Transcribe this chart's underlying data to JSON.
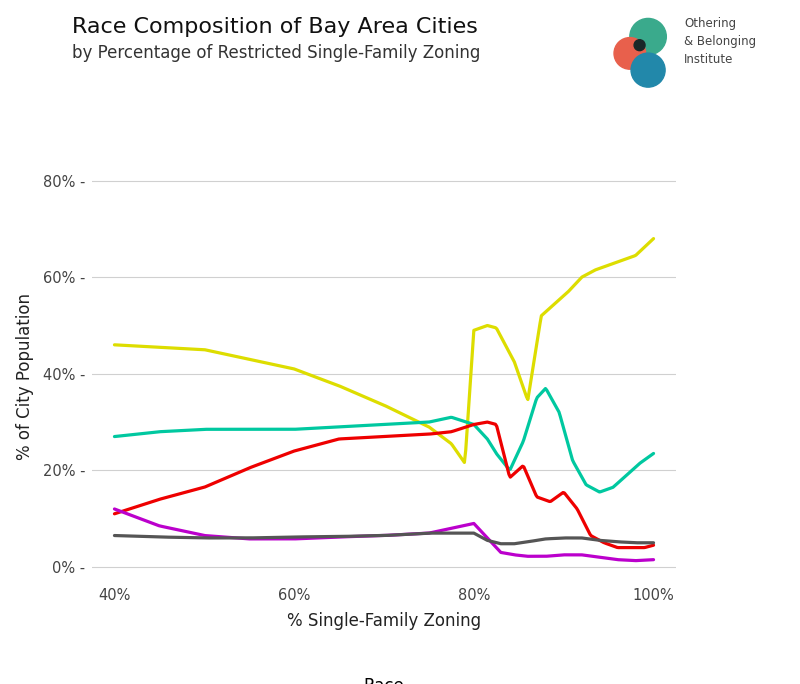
{
  "title": "Race Composition of Bay Area Cities",
  "subtitle": "by Percentage of Restricted Single-Family Zoning",
  "xlabel": "% Single-Family Zoning",
  "ylabel": "% of City Population",
  "xlim": [
    0.375,
    1.025
  ],
  "ylim": [
    -0.03,
    0.82
  ],
  "xticks": [
    0.4,
    0.6,
    0.8,
    1.0
  ],
  "yticks": [
    0.0,
    0.2,
    0.4,
    0.6,
    0.8
  ],
  "xtick_labels": [
    "40%",
    "60%",
    "80%",
    "100%"
  ],
  "ytick_labels": [
    "0%",
    "20%",
    "40%",
    "60%",
    "80%"
  ],
  "background_color": "#ffffff",
  "grid_color": "#d0d0d0",
  "colors": {
    "Asian": "#00c8a0",
    "Black": "#bb00cc",
    "Hispanic": "#ee0000",
    "Other": "#555555",
    "White": "#dddd00"
  },
  "x_asian": [
    0.4,
    0.45,
    0.5,
    0.55,
    0.6,
    0.65,
    0.7,
    0.75,
    0.775,
    0.8,
    0.815,
    0.825,
    0.84,
    0.855,
    0.87,
    0.88,
    0.895,
    0.91,
    0.925,
    0.94,
    0.955,
    0.97,
    0.985,
    1.0
  ],
  "y_asian": [
    0.27,
    0.28,
    0.285,
    0.285,
    0.285,
    0.29,
    0.295,
    0.3,
    0.31,
    0.295,
    0.265,
    0.235,
    0.2,
    0.26,
    0.35,
    0.37,
    0.32,
    0.22,
    0.17,
    0.155,
    0.165,
    0.19,
    0.215,
    0.235
  ],
  "x_black": [
    0.4,
    0.45,
    0.5,
    0.55,
    0.6,
    0.65,
    0.7,
    0.75,
    0.8,
    0.815,
    0.83,
    0.845,
    0.86,
    0.88,
    0.9,
    0.92,
    0.94,
    0.96,
    0.98,
    1.0
  ],
  "y_black": [
    0.12,
    0.085,
    0.065,
    0.058,
    0.058,
    0.062,
    0.065,
    0.07,
    0.09,
    0.06,
    0.03,
    0.025,
    0.022,
    0.022,
    0.025,
    0.025,
    0.02,
    0.015,
    0.013,
    0.015
  ],
  "x_hispanic": [
    0.4,
    0.45,
    0.5,
    0.55,
    0.6,
    0.65,
    0.7,
    0.75,
    0.775,
    0.8,
    0.815,
    0.825,
    0.84,
    0.855,
    0.87,
    0.885,
    0.9,
    0.915,
    0.93,
    0.945,
    0.96,
    0.975,
    0.99,
    1.0
  ],
  "y_hispanic": [
    0.11,
    0.14,
    0.165,
    0.205,
    0.24,
    0.265,
    0.27,
    0.275,
    0.28,
    0.295,
    0.3,
    0.295,
    0.185,
    0.21,
    0.145,
    0.135,
    0.155,
    0.12,
    0.065,
    0.05,
    0.04,
    0.04,
    0.04,
    0.045
  ],
  "x_other": [
    0.4,
    0.45,
    0.5,
    0.55,
    0.6,
    0.65,
    0.7,
    0.75,
    0.8,
    0.815,
    0.83,
    0.845,
    0.86,
    0.88,
    0.9,
    0.92,
    0.94,
    0.96,
    0.98,
    1.0
  ],
  "y_other": [
    0.065,
    0.062,
    0.06,
    0.06,
    0.062,
    0.063,
    0.065,
    0.07,
    0.07,
    0.055,
    0.048,
    0.048,
    0.052,
    0.058,
    0.06,
    0.06,
    0.055,
    0.052,
    0.05,
    0.05
  ],
  "x_white": [
    0.4,
    0.45,
    0.5,
    0.55,
    0.6,
    0.65,
    0.7,
    0.75,
    0.775,
    0.79,
    0.8,
    0.815,
    0.825,
    0.835,
    0.845,
    0.86,
    0.875,
    0.89,
    0.905,
    0.92,
    0.935,
    0.95,
    0.965,
    0.98,
    1.0
  ],
  "y_white": [
    0.46,
    0.455,
    0.45,
    0.43,
    0.41,
    0.375,
    0.335,
    0.29,
    0.255,
    0.215,
    0.49,
    0.5,
    0.495,
    0.46,
    0.425,
    0.345,
    0.52,
    0.545,
    0.57,
    0.6,
    0.615,
    0.625,
    0.635,
    0.645,
    0.68
  ],
  "logo_green_color": "#3aaa8c",
  "logo_red_color": "#e8604c",
  "logo_teal_color": "#2288aa",
  "logo_dark_color": "#1a2828"
}
